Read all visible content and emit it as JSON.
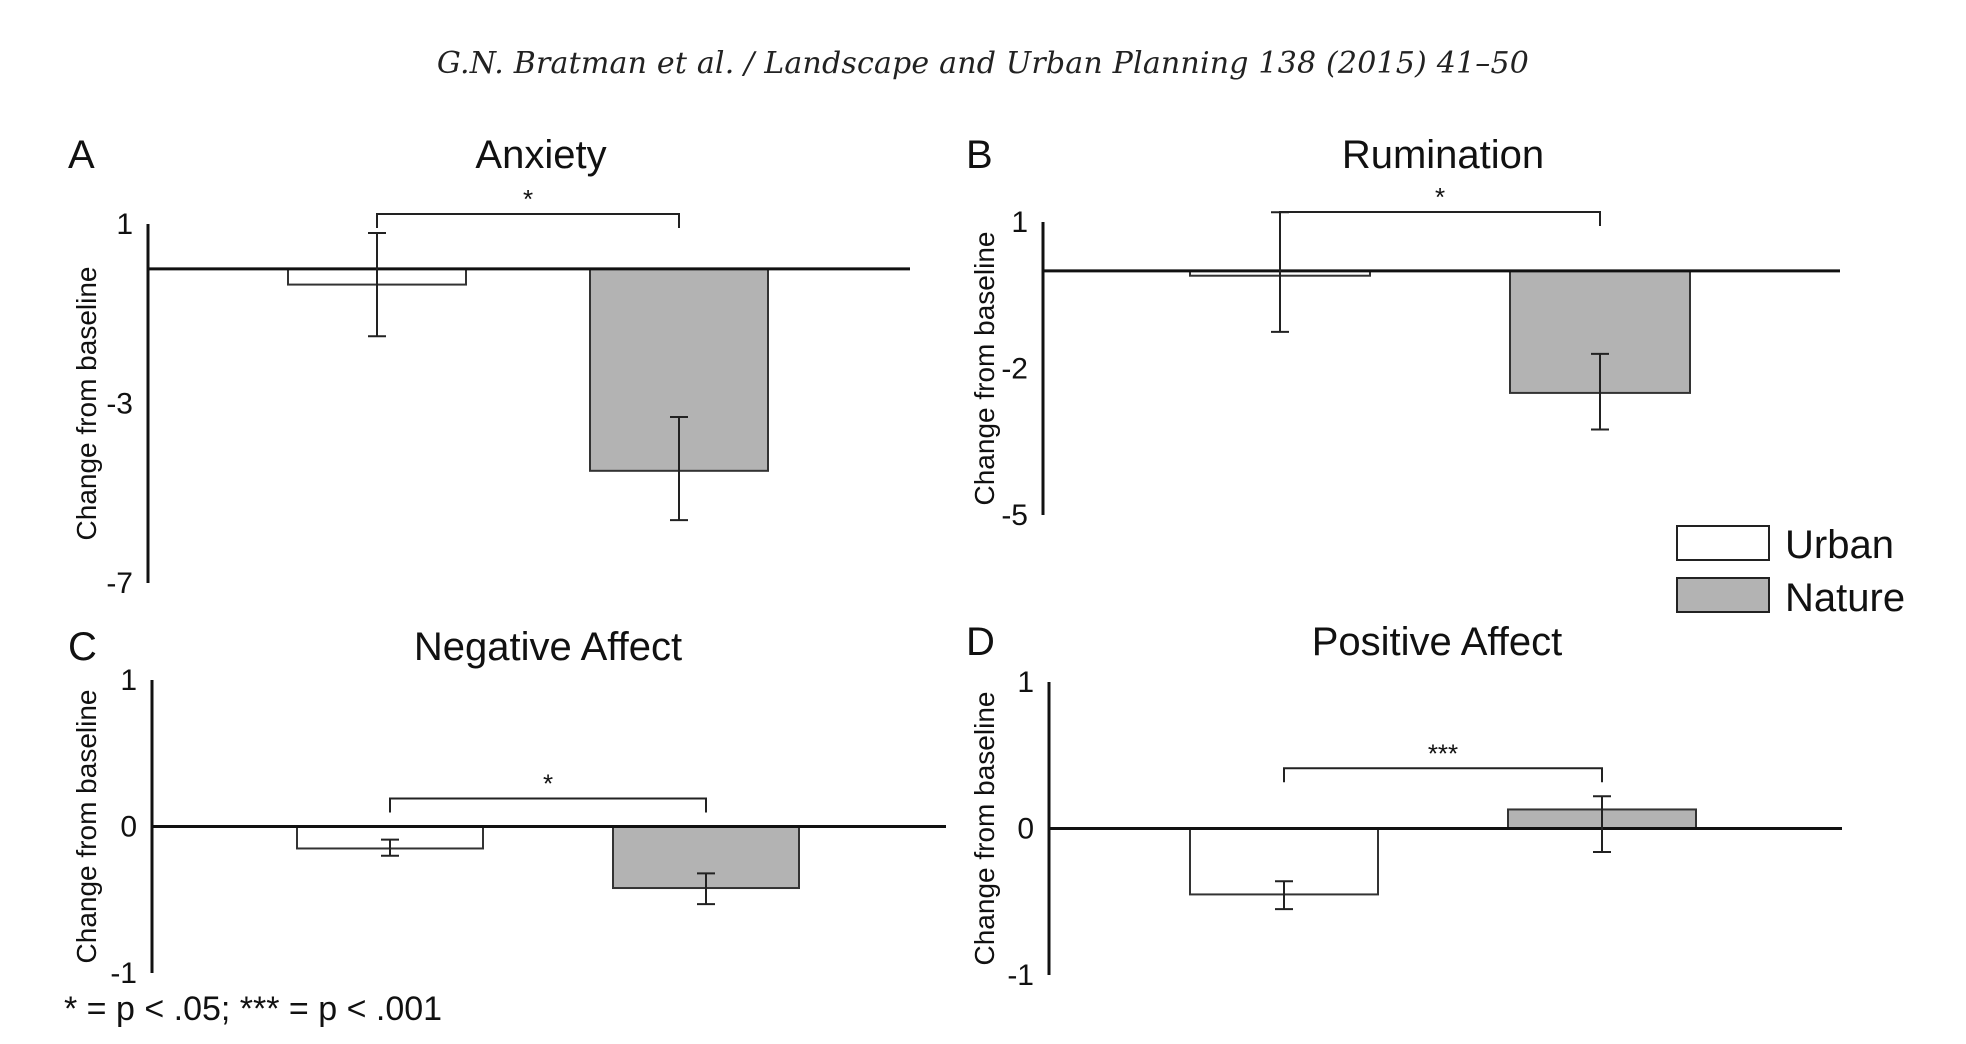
{
  "header": "G.N. Bratman et al. / Landscape and Urban Planning 138 (2015) 41–50",
  "footnote": "* = p < .05; *** = p < .001",
  "legend": {
    "items": [
      {
        "label": "Urban",
        "color": "#ffffff"
      },
      {
        "label": "Nature",
        "color": "#b3b3b3"
      }
    ]
  },
  "chart_data": [
    {
      "type": "bar",
      "panel": "A",
      "title": "Anxiety",
      "ylabel": "Change from baseline",
      "ylim": [
        -7,
        1
      ],
      "yticks": [
        "1",
        "-3",
        "-7"
      ],
      "categories": [
        "Urban",
        "Nature"
      ],
      "series": [
        {
          "name": "Urban",
          "values": [
            -0.35,
            -4.5
          ]
        }
      ],
      "values": [
        -0.35,
        -4.5
      ],
      "errors": [
        {
          "low": -1.5,
          "high": 0.8
        },
        {
          "low": -5.6,
          "high": -3.3
        }
      ],
      "significance": "*",
      "colors": [
        "#ffffff",
        "#b3b3b3"
      ]
    },
    {
      "type": "bar",
      "panel": "B",
      "title": "Rumination",
      "ylabel": "Change from baseline",
      "ylim": [
        -5,
        1
      ],
      "yticks": [
        "1",
        "-2",
        "-5"
      ],
      "categories": [
        "Urban",
        "Nature"
      ],
      "values": [
        -0.1,
        -2.5
      ],
      "errors": [
        {
          "low": -1.25,
          "high": 1.2
        },
        {
          "low": -3.25,
          "high": -1.7
        }
      ],
      "significance": "*",
      "colors": [
        "#ffffff",
        "#b3b3b3"
      ]
    },
    {
      "type": "bar",
      "panel": "C",
      "title": "Negative Affect",
      "ylabel": "Change from baseline",
      "ylim": [
        -1,
        1
      ],
      "yticks": [
        "1",
        "0",
        "-1"
      ],
      "categories": [
        "Urban",
        "Nature"
      ],
      "values": [
        -0.15,
        -0.42
      ],
      "errors": [
        {
          "low": -0.2,
          "high": -0.09
        },
        {
          "low": -0.53,
          "high": -0.32
        }
      ],
      "significance": "*",
      "colors": [
        "#ffffff",
        "#b3b3b3"
      ]
    },
    {
      "type": "bar",
      "panel": "D",
      "title": "Positive Affect",
      "ylabel": "Change from baseline",
      "ylim": [
        -1,
        1
      ],
      "yticks": [
        "1",
        "0",
        "-1"
      ],
      "categories": [
        "Urban",
        "Nature"
      ],
      "values": [
        -0.45,
        0.13
      ],
      "errors": [
        {
          "low": -0.55,
          "high": -0.36
        },
        {
          "low": -0.16,
          "high": 0.22
        }
      ],
      "significance": "***",
      "colors": [
        "#ffffff",
        "#b3b3b3"
      ]
    }
  ]
}
